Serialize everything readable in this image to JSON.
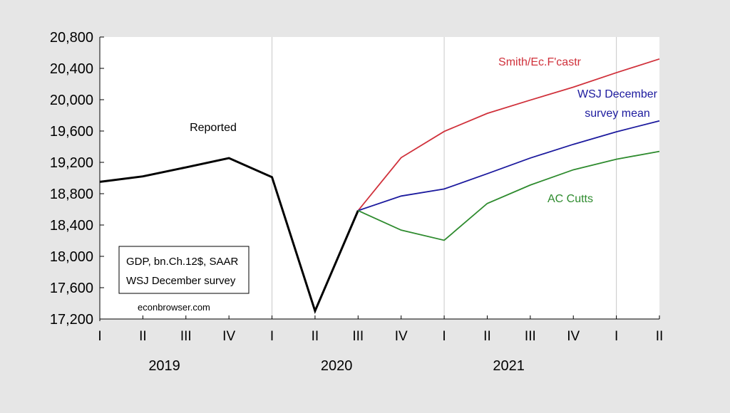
{
  "chart_data": {
    "type": "line",
    "title": "",
    "xlabel": "",
    "ylabel": "",
    "categories": [
      "I",
      "II",
      "III",
      "IV",
      "I",
      "II",
      "III",
      "IV",
      "I",
      "II",
      "III",
      "IV",
      "I",
      "II"
    ],
    "years": [
      {
        "label": "2019"
      },
      {
        "label": "2020"
      },
      {
        "label": "2021"
      }
    ],
    "ylim": [
      17200,
      20800
    ],
    "yticks": [
      "17,200",
      "17,600",
      "18,000",
      "18,400",
      "18,800",
      "19,200",
      "19,600",
      "20,000",
      "20,400",
      "20,800"
    ],
    "grid": "vertical lines at quarter I",
    "series": [
      {
        "name": "Reported",
        "color": "#000000",
        "values": [
          18951,
          19021,
          19136,
          19254,
          19011,
          17303,
          18584,
          null,
          null,
          null,
          null,
          null,
          null,
          null
        ]
      },
      {
        "name": "Smith/Ec.F'castr",
        "color": "#d0313b",
        "values": [
          null,
          null,
          null,
          null,
          null,
          null,
          18584,
          19260,
          19595,
          19825,
          19995,
          20160,
          20345,
          20520
        ]
      },
      {
        "name": "WSJ December survey mean",
        "color": "#1c1a9e",
        "values": [
          null,
          null,
          null,
          null,
          null,
          null,
          18584,
          18770,
          18860,
          19055,
          19255,
          19430,
          19590,
          19730
        ]
      },
      {
        "name": "AC Cutts",
        "color": "#2e8b2e",
        "values": [
          null,
          null,
          null,
          null,
          null,
          null,
          18584,
          18335,
          18205,
          18675,
          18910,
          19105,
          19240,
          19340
        ]
      }
    ],
    "series_labels": [
      {
        "lines": [
          "Reported"
        ],
        "color": "#000000"
      },
      {
        "lines": [
          "Smith/Ec.F'castr"
        ],
        "color": "#d0313b"
      },
      {
        "lines": [
          "WSJ December",
          "survey mean"
        ],
        "color": "#1c1a9e"
      },
      {
        "lines": [
          "AC Cutts"
        ],
        "color": "#2e8b2e"
      }
    ],
    "legend_box": [
      "GDP, bn.Ch.12$, SAAR",
      "WSJ December survey"
    ],
    "watermark": "econbrowser.com"
  }
}
